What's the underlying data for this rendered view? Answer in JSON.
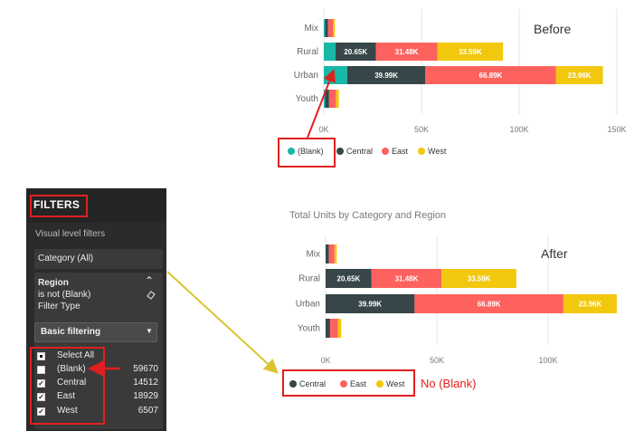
{
  "colors": {
    "blank": "#17b8a6",
    "central": "#374649",
    "east": "#fd625e",
    "west": "#f2c80f",
    "callout": "#e0201f",
    "arrow": "#d9c531"
  },
  "top_chart": {
    "annotation": "Before",
    "categories": [
      "Mix",
      "Rural",
      "Urban",
      "Youth"
    ],
    "x_ticks": [
      "0K",
      "50K",
      "100K",
      "150K"
    ],
    "bar_labels": {
      "rural": [
        "20.65K",
        "31.48K",
        "33.59K"
      ],
      "urban": [
        "39.99K",
        "66.89K",
        "23.96K"
      ]
    },
    "legend": [
      "(Blank)",
      "Central",
      "East",
      "West"
    ]
  },
  "bottom_chart": {
    "title": "Total Units by Category and Region",
    "annotation": "After",
    "categories": [
      "Mix",
      "Rural",
      "Urban",
      "Youth"
    ],
    "x_ticks": [
      "0K",
      "50K",
      "100K"
    ],
    "bar_labels": {
      "rural": [
        "20.65K",
        "31.48K",
        "33.59K"
      ],
      "urban": [
        "39.99K",
        "66.89K",
        "23.96K"
      ]
    },
    "legend": [
      "Central",
      "East",
      "West"
    ],
    "callout": "No (Blank)"
  },
  "chart_data": [
    {
      "type": "bar",
      "orientation": "horizontal",
      "stacked": true,
      "categories": [
        "Mix",
        "Rural",
        "Urban",
        "Youth"
      ],
      "series": [
        {
          "name": "(Blank)",
          "values": [
            700,
            6000,
            12000,
            700
          ]
        },
        {
          "name": "Central",
          "values": [
            1500,
            20650,
            39990,
            2000
          ]
        },
        {
          "name": "East",
          "values": [
            2500,
            31480,
            66890,
            3500
          ]
        },
        {
          "name": "West",
          "values": [
            1000,
            33590,
            23960,
            1500
          ]
        }
      ],
      "xlim": [
        0,
        150000
      ],
      "legend_position": "bottom"
    },
    {
      "type": "bar",
      "orientation": "horizontal",
      "stacked": true,
      "title": "Total Units by Category and Region",
      "categories": [
        "Mix",
        "Rural",
        "Urban",
        "Youth"
      ],
      "series": [
        {
          "name": "Central",
          "values": [
            1500,
            20650,
            39990,
            2000
          ]
        },
        {
          "name": "East",
          "values": [
            2500,
            31480,
            66890,
            3500
          ]
        },
        {
          "name": "West",
          "values": [
            1000,
            33590,
            23960,
            1500
          ]
        }
      ],
      "xlim": [
        0,
        130000
      ],
      "legend_position": "bottom"
    }
  ],
  "filters": {
    "title": "FILTERS",
    "section_label": "Visual level filters",
    "category_card": "Category (All)",
    "region_card": {
      "field": "Region",
      "condition": "is not (Blank)",
      "filter_type_label": "Filter Type",
      "mode": "Basic filtering",
      "items": [
        {
          "label": "Select All",
          "state": "partial",
          "count": ""
        },
        {
          "label": "(Blank)",
          "state": "unchecked",
          "count": "59670"
        },
        {
          "label": "Central",
          "state": "checked",
          "count": "14512"
        },
        {
          "label": "East",
          "state": "checked",
          "count": "18929"
        },
        {
          "label": "West",
          "state": "checked",
          "count": "6507"
        }
      ]
    }
  }
}
